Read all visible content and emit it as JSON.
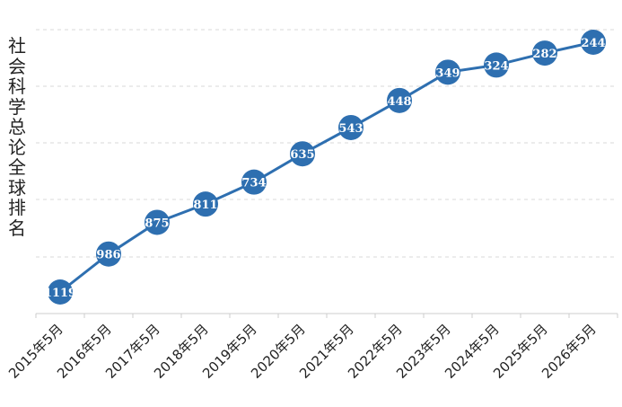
{
  "chart_data": {
    "type": "line",
    "ylabel": "社会科学总论全球排名",
    "categories": [
      "2015年5月",
      "2016年5月",
      "2017年5月",
      "2018年5月",
      "2019年5月",
      "2020年5月",
      "2021年5月",
      "2022年5月",
      "2023年5月",
      "2024年5月",
      "2025年5月",
      "2026年5月"
    ],
    "series": [
      {
        "values": [
          1119,
          986,
          875,
          811,
          734,
          635,
          543,
          448,
          349,
          324,
          282,
          244
        ]
      }
    ],
    "y_reversed": true,
    "ylim": [
      1200,
      200
    ],
    "grid": true,
    "colors": {
      "line": "#2e6fb0",
      "marker": "#2e6fb0",
      "label": "#ffffff"
    }
  }
}
